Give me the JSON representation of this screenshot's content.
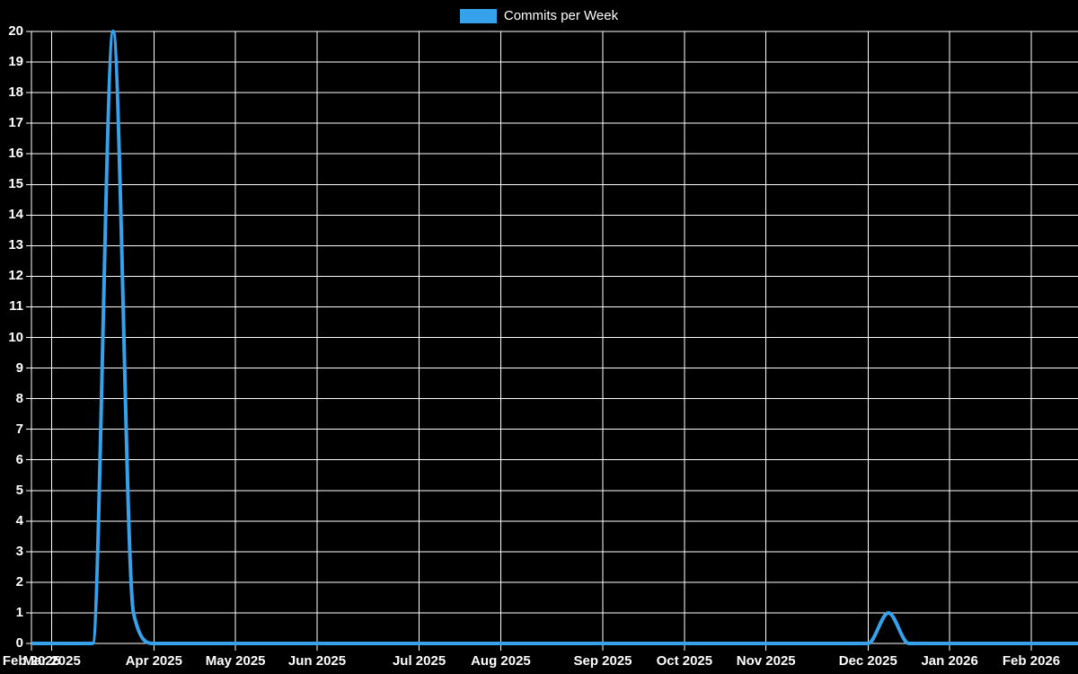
{
  "legend": {
    "label": "Commits per Week",
    "swatch_color": "#36a2eb"
  },
  "colors": {
    "background": "#000000",
    "grid": "#ffffff",
    "text": "#ffffff",
    "line": "#36a2eb"
  },
  "chart_data": {
    "type": "line",
    "title": "",
    "legend_entries": [
      "Commits per Week"
    ],
    "legend_position": "top-center",
    "x_unit": "week",
    "grid": true,
    "ylim": [
      0,
      20
    ],
    "y_ticks": [
      0,
      1,
      2,
      3,
      4,
      5,
      6,
      7,
      8,
      9,
      10,
      11,
      12,
      13,
      14,
      15,
      16,
      17,
      18,
      19,
      20
    ],
    "x_ticks": [
      {
        "label": "Feb 2025",
        "week": 0
      },
      {
        "label": "Mar 2025",
        "week": 1
      },
      {
        "label": "Apr 2025",
        "week": 6
      },
      {
        "label": "May 2025",
        "week": 10
      },
      {
        "label": "Jun 2025",
        "week": 14
      },
      {
        "label": "Jul 2025",
        "week": 19
      },
      {
        "label": "Aug 2025",
        "week": 23
      },
      {
        "label": "Sep 2025",
        "week": 28
      },
      {
        "label": "Oct 2025",
        "week": 32
      },
      {
        "label": "Nov 2025",
        "week": 36
      },
      {
        "label": "Dec 2025",
        "week": 41
      },
      {
        "label": "Jan 2026",
        "week": 45
      },
      {
        "label": "Feb 2026",
        "week": 49
      }
    ],
    "series": [
      {
        "name": "Commits per Week",
        "color": "#36a2eb",
        "values": [
          0,
          0,
          0,
          0,
          20,
          1,
          0,
          0,
          0,
          0,
          0,
          0,
          0,
          0,
          0,
          0,
          0,
          0,
          0,
          0,
          0,
          0,
          0,
          0,
          0,
          0,
          0,
          0,
          0,
          0,
          0,
          0,
          0,
          0,
          0,
          0,
          0,
          0,
          0,
          0,
          0,
          0,
          1,
          0,
          0,
          0,
          0,
          0,
          0,
          0,
          0,
          0,
          0
        ]
      }
    ]
  }
}
